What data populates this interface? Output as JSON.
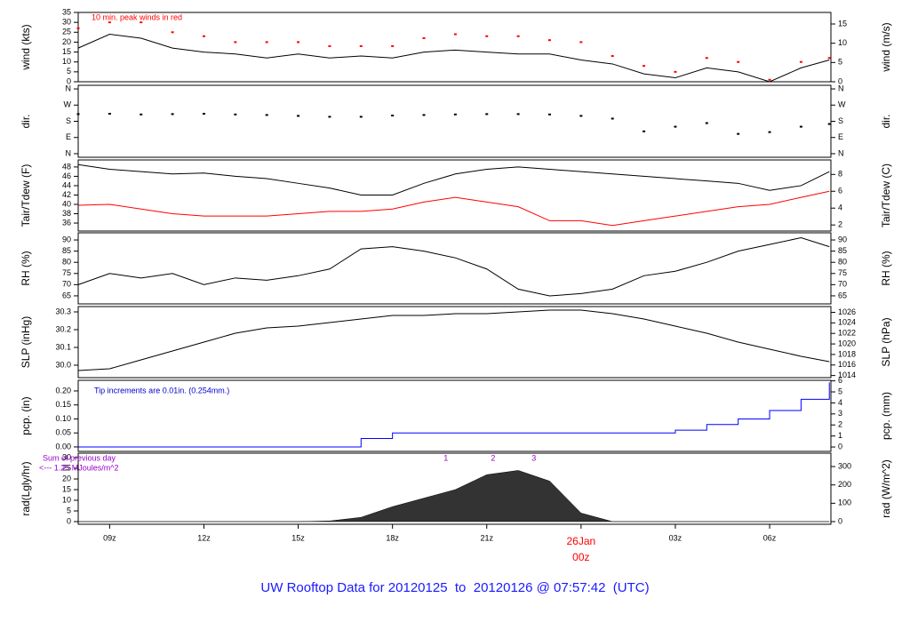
{
  "chart_data": [
    {
      "type": "line",
      "ylabel": "wind (kts)",
      "y2label": "wind (m/s)",
      "annotation": "10 min. peak winds in red",
      "annotation_color": "#ff0000",
      "xlim": [
        8,
        31.95
      ],
      "ylim": [
        0,
        35
      ],
      "yticks": [
        0,
        5,
        10,
        15,
        20,
        25,
        30,
        35
      ],
      "y2lim": [
        0,
        18.0
      ],
      "y2ticks": [
        0,
        5,
        10,
        15
      ],
      "x": [
        8,
        9,
        10,
        11,
        12,
        13,
        14,
        15,
        16,
        17,
        18,
        19,
        20,
        21,
        22,
        23,
        24,
        25,
        26,
        27,
        28,
        29,
        30,
        31,
        31.9
      ],
      "series": [
        {
          "style": "line",
          "color": "#000000",
          "values": [
            17,
            24,
            22,
            17,
            15,
            14,
            12,
            14,
            12,
            13,
            12,
            15,
            16,
            15,
            14,
            14,
            11,
            9,
            4,
            2,
            7,
            5,
            0,
            7,
            11
          ]
        },
        {
          "style": "points",
          "color": "#ff0000",
          "values": [
            27,
            30,
            30,
            25,
            23,
            20,
            20,
            20,
            18,
            18,
            18,
            22,
            24,
            23,
            23,
            21,
            20,
            13,
            8,
            5,
            12,
            10,
            1,
            10,
            12
          ]
        }
      ]
    },
    {
      "type": "scatter",
      "ylabel": "dir.",
      "y2label": "dir.",
      "xlim": [
        8,
        31.95
      ],
      "ylim": [
        -20,
        380
      ],
      "yticks": [
        {
          "value": 0,
          "label": "N"
        },
        {
          "value": 90,
          "label": "E"
        },
        {
          "value": 180,
          "label": "S"
        },
        {
          "value": 270,
          "label": "W"
        },
        {
          "value": 360,
          "label": "N"
        }
      ],
      "y2lim": [
        -20,
        380
      ],
      "y2ticks": [
        {
          "value": 0,
          "label": "N"
        },
        {
          "value": 90,
          "label": "E"
        },
        {
          "value": 180,
          "label": "S"
        },
        {
          "value": 270,
          "label": "W"
        },
        {
          "value": 360,
          "label": "N"
        }
      ],
      "x": [
        8,
        9,
        10,
        11,
        12,
        13,
        14,
        15,
        16,
        17,
        18,
        19,
        20,
        21,
        22,
        23,
        24,
        25,
        26,
        27,
        28,
        29,
        30,
        31,
        31.9
      ],
      "series": [
        {
          "style": "points",
          "color": "#000000",
          "values": [
            220,
            222,
            218,
            220,
            222,
            218,
            215,
            210,
            205,
            205,
            212,
            215,
            218,
            220,
            220,
            218,
            210,
            195,
            124,
            150,
            170,
            110,
            120,
            150,
            165
          ]
        }
      ]
    },
    {
      "type": "line",
      "ylabel": "Tair/Tdew (F)",
      "y2label": "Tair/Tdew (C)",
      "xlim": [
        8,
        31.95
      ],
      "ylim": [
        34.3,
        49.5
      ],
      "yticks": [
        36,
        38,
        40,
        42,
        44,
        46,
        48
      ],
      "y2lim": [
        1.28,
        9.72
      ],
      "y2ticks": [
        2,
        4,
        6,
        8
      ],
      "x": [
        8,
        9,
        10,
        11,
        12,
        13,
        14,
        15,
        16,
        17,
        18,
        19,
        20,
        21,
        22,
        23,
        24,
        25,
        26,
        27,
        28,
        29,
        30,
        31,
        31.9
      ],
      "series": [
        {
          "style": "line",
          "color": "#000000",
          "values": [
            48.5,
            47.5,
            47,
            46.5,
            46.7,
            46,
            45.5,
            44.5,
            43.5,
            42,
            42,
            44.5,
            46.5,
            47.5,
            48,
            47.5,
            47,
            46.5,
            46,
            45.5,
            45,
            44.5,
            43,
            44,
            47
          ]
        },
        {
          "style": "line",
          "color": "#ff0000",
          "values": [
            39.8,
            40,
            39,
            38,
            37.5,
            37.5,
            37.5,
            38,
            38.5,
            38.5,
            39,
            40.5,
            41.5,
            40.5,
            39.5,
            36.5,
            36.5,
            35.5,
            36.5,
            37.5,
            38.5,
            39.5,
            40,
            41.5,
            42.8
          ]
        }
      ]
    },
    {
      "type": "line",
      "ylabel": "RH (%)",
      "y2label": "RH (%)",
      "xlim": [
        8,
        31.95
      ],
      "ylim": [
        61.4,
        93.2
      ],
      "yticks": [
        65,
        70,
        75,
        80,
        85,
        90
      ],
      "y2lim": [
        61.4,
        93.2
      ],
      "y2ticks": [
        65,
        70,
        75,
        80,
        85,
        90
      ],
      "x": [
        8,
        9,
        10,
        11,
        12,
        13,
        14,
        15,
        16,
        17,
        18,
        19,
        20,
        21,
        22,
        23,
        24,
        25,
        26,
        27,
        28,
        29,
        30,
        31,
        31.9
      ],
      "series": [
        {
          "style": "line",
          "color": "#000000",
          "values": [
            70,
            75,
            73,
            75,
            70,
            73,
            72,
            74,
            77,
            86,
            87,
            85,
            82,
            77,
            68,
            65,
            66,
            68,
            74,
            76,
            80,
            85,
            88,
            91,
            87
          ]
        }
      ]
    },
    {
      "type": "line",
      "ylabel": "SLP (inHg)",
      "y2label": "SLP (hPa)",
      "xlim": [
        8,
        31.95
      ],
      "ylim": [
        29.93,
        30.33
      ],
      "yticks": [
        {
          "value": 30.0,
          "label": "30.0"
        },
        30.1,
        30.2,
        30.3
      ],
      "y2lim": [
        1013.6,
        1027.1
      ],
      "y2ticks": [
        1014,
        1016,
        1018,
        1020,
        1022,
        1024,
        1026
      ],
      "x": [
        8,
        9,
        10,
        11,
        12,
        13,
        14,
        15,
        16,
        17,
        18,
        19,
        20,
        21,
        22,
        23,
        24,
        25,
        26,
        27,
        28,
        29,
        30,
        31,
        31.9
      ],
      "series": [
        {
          "style": "line",
          "color": "#000000",
          "values": [
            29.97,
            29.98,
            30.03,
            30.08,
            30.13,
            30.18,
            30.21,
            30.22,
            30.24,
            30.26,
            30.28,
            30.28,
            30.29,
            30.29,
            30.3,
            30.31,
            30.31,
            30.29,
            30.26,
            30.22,
            30.18,
            30.13,
            30.09,
            30.05,
            30.02
          ]
        }
      ]
    },
    {
      "type": "line",
      "ylabel": "pcp. (in)",
      "y2label": "pcp. (mm)",
      "annotation": "Tip increments are 0.01in. (0.254mm.)",
      "annotation_color": "#0000cc",
      "xlim": [
        8,
        31.95
      ],
      "ylim": [
        -0.016,
        0.238
      ],
      "yticks": [
        {
          "value": 0,
          "label": "0.00"
        },
        0.05,
        {
          "value": 0.1,
          "label": "0.10"
        },
        0.15,
        {
          "value": 0.2,
          "label": "0.20"
        }
      ],
      "y2lim": [
        -0.4,
        6.05
      ],
      "y2ticks": [
        0,
        1,
        2,
        3,
        4,
        5,
        6
      ],
      "x": [
        8,
        9,
        10,
        11,
        12,
        13,
        14,
        15,
        16,
        17,
        18,
        19,
        20,
        21,
        22,
        23,
        24,
        25,
        26,
        27,
        28,
        29,
        30,
        31,
        31.9
      ],
      "series": [
        {
          "style": "step",
          "color": "#0000ff",
          "values": [
            0,
            0,
            0,
            0,
            0,
            0,
            0,
            0,
            0,
            0.03,
            0.05,
            0.05,
            0.05,
            0.05,
            0.05,
            0.05,
            0.05,
            0.05,
            0.05,
            0.06,
            0.08,
            0.1,
            0.13,
            0.17,
            0.23
          ]
        }
      ]
    },
    {
      "type": "area",
      "ylabel": "rad(Lgly/hr)",
      "y2label": "rad (W/m^2)",
      "annotation_lines": [
        "Sum of previous day",
        "<--- 1.25 MJoules/m^2"
      ],
      "annotation_color": "#9900cc",
      "markers": [
        {
          "label": "1",
          "x": 19.7
        },
        {
          "label": "2",
          "x": 21.2
        },
        {
          "label": "3",
          "x": 22.5
        }
      ],
      "title": "UW Rooftop Data for 20120125  to  20120126 @ 07:57:42  (UTC)",
      "xlim": [
        8,
        31.95
      ],
      "ylim": [
        -1.25,
        32.1
      ],
      "yticks": [
        0,
        5,
        10,
        15,
        20,
        25,
        30
      ],
      "y2lim": [
        -14.5,
        373
      ],
      "y2ticks": [
        0,
        100,
        200,
        300
      ],
      "xticks": [
        {
          "value": 9,
          "label": "09z"
        },
        {
          "value": 12,
          "label": "12z"
        },
        {
          "value": 15,
          "label": "15z"
        },
        {
          "value": 18,
          "label": "18z"
        },
        {
          "value": 21,
          "label": "21z"
        },
        {
          "value": 24,
          "label": "00z",
          "date": "26Jan",
          "color": "#ff0000"
        },
        {
          "value": 27,
          "label": "03z"
        },
        {
          "value": 30,
          "label": "06z"
        }
      ],
      "x": [
        8,
        9,
        10,
        11,
        12,
        13,
        14,
        15,
        16,
        17,
        18,
        19,
        20,
        21,
        22,
        23,
        24,
        25,
        26,
        27,
        28,
        29,
        30,
        31,
        31.9
      ],
      "series": [
        {
          "style": "area",
          "color": "#333333",
          "values": [
            0,
            0,
            0,
            0,
            0,
            0,
            0,
            0,
            0.3,
            2,
            7,
            11,
            15,
            22,
            24,
            19,
            4,
            0,
            0,
            0,
            0,
            0,
            0,
            0,
            0
          ]
        }
      ]
    }
  ]
}
